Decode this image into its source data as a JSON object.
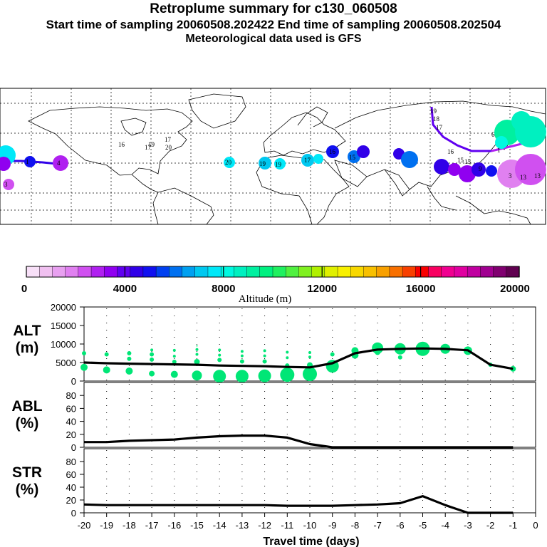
{
  "header": {
    "title": "Retroplume summary for c130_060508",
    "sampling": "Start time of sampling 20060508.202422      End time of sampling 20060508.202504",
    "met": "Meteorological data used is GFS"
  },
  "colorbar": {
    "label": "Altitude (m)",
    "ticks": [
      "0",
      "4000",
      "8000",
      "12000",
      "16000",
      "20000"
    ],
    "colors": [
      "#f8e0f8",
      "#f0c0f0",
      "#e8a0f0",
      "#e080f0",
      "#d050f0",
      "#b020f0",
      "#9000f0",
      "#6000f0",
      "#3000e8",
      "#1010f0",
      "#0040f0",
      "#0070f0",
      "#00a0f0",
      "#00c8f0",
      "#00e8f8",
      "#00f8e0",
      "#00f0c0",
      "#00f0a0",
      "#00f080",
      "#20f060",
      "#50f040",
      "#80f020",
      "#b0f000",
      "#e0f000",
      "#f8f000",
      "#f8d800",
      "#f8c000",
      "#f8a000",
      "#f87000",
      "#f84000",
      "#f80000",
      "#f80060",
      "#f00090",
      "#e000a0",
      "#c000a0",
      "#a00090",
      "#800070",
      "#600050"
    ]
  },
  "map": {
    "labels": [
      "20",
      "19",
      "19",
      "17",
      "17",
      "17",
      "16",
      "15",
      "4",
      "1",
      "3",
      "19",
      "18",
      "17",
      "16",
      "15",
      "15",
      "9",
      "6",
      "1",
      "3",
      "13",
      "13",
      "16",
      "19",
      "20"
    ],
    "label_colors": [
      "cyan",
      "cyan",
      "cyan",
      "cyan",
      "cyan",
      "blue",
      "blue",
      "blue",
      "blue",
      "blue",
      "purple",
      "teal",
      "teal",
      "teal",
      "teal",
      "teal",
      "teal",
      "teal",
      "teal",
      "teal",
      "purple",
      "purple",
      "purple",
      "purple",
      "purple",
      "purple"
    ]
  },
  "chart_data": [
    {
      "type": "line",
      "name": "ALT",
      "ylabel": "ALT\n(m)",
      "ylabel_lines": [
        "ALT",
        "(m)"
      ],
      "ylim": [
        0,
        20000
      ],
      "yticks": [
        "0",
        "5000",
        "10000",
        "15000",
        "20000"
      ],
      "x": [
        -20,
        -19,
        -18,
        -17,
        -16,
        -15,
        -14,
        -13,
        -12,
        -11,
        -10,
        -9,
        -8,
        -7,
        -6,
        -5,
        -4,
        -3,
        -2,
        -1
      ],
      "series": [
        {
          "name": "mean altitude",
          "values": [
            5000,
            4800,
            4700,
            4600,
            4500,
            4400,
            4200,
            4100,
            4000,
            3800,
            3700,
            4800,
            7500,
            8500,
            8700,
            8800,
            8700,
            8300,
            4400,
            3300
          ]
        }
      ],
      "points": [
        {
          "x": -20,
          "y": 3700,
          "s": 5
        },
        {
          "x": -20,
          "y": 7500,
          "s": 3
        },
        {
          "x": -19,
          "y": 3000,
          "s": 5
        },
        {
          "x": -19,
          "y": 7200,
          "s": 3
        },
        {
          "x": -18,
          "y": 2700,
          "s": 5
        },
        {
          "x": -18,
          "y": 6000,
          "s": 3
        },
        {
          "x": -18,
          "y": 7500,
          "s": 3
        },
        {
          "x": -17,
          "y": 2000,
          "s": 4
        },
        {
          "x": -17,
          "y": 5800,
          "s": 3
        },
        {
          "x": -17,
          "y": 7200,
          "s": 3
        },
        {
          "x": -17,
          "y": 8400,
          "s": 2
        },
        {
          "x": -16,
          "y": 1800,
          "s": 5
        },
        {
          "x": -16,
          "y": 5200,
          "s": 3
        },
        {
          "x": -16,
          "y": 6700,
          "s": 2
        },
        {
          "x": -16,
          "y": 8300,
          "s": 2
        },
        {
          "x": -15,
          "y": 1500,
          "s": 7
        },
        {
          "x": -15,
          "y": 5200,
          "s": 4
        },
        {
          "x": -15,
          "y": 7200,
          "s": 2
        },
        {
          "x": -15,
          "y": 8500,
          "s": 2
        },
        {
          "x": -15,
          "y": 9500,
          "s": 1
        },
        {
          "x": -14,
          "y": 1300,
          "s": 9
        },
        {
          "x": -14,
          "y": 5700,
          "s": 3
        },
        {
          "x": -14,
          "y": 7000,
          "s": 2
        },
        {
          "x": -14,
          "y": 8400,
          "s": 2
        },
        {
          "x": -13,
          "y": 1300,
          "s": 9
        },
        {
          "x": -13,
          "y": 5300,
          "s": 3
        },
        {
          "x": -13,
          "y": 6800,
          "s": 2
        },
        {
          "x": -13,
          "y": 8000,
          "s": 2
        },
        {
          "x": -12,
          "y": 1400,
          "s": 9
        },
        {
          "x": -12,
          "y": 5300,
          "s": 3
        },
        {
          "x": -12,
          "y": 6800,
          "s": 2
        },
        {
          "x": -12,
          "y": 8200,
          "s": 2
        },
        {
          "x": -11,
          "y": 1700,
          "s": 10
        },
        {
          "x": -11,
          "y": 4200,
          "s": 3
        },
        {
          "x": -11,
          "y": 6300,
          "s": 2
        },
        {
          "x": -11,
          "y": 7800,
          "s": 2
        },
        {
          "x": -10,
          "y": 1900,
          "s": 10
        },
        {
          "x": -10,
          "y": 4300,
          "s": 4
        },
        {
          "x": -10,
          "y": 6500,
          "s": 2
        },
        {
          "x": -10,
          "y": 7700,
          "s": 2
        },
        {
          "x": -9,
          "y": 4000,
          "s": 9
        },
        {
          "x": -9,
          "y": 7200,
          "s": 3
        },
        {
          "x": -8,
          "y": 7000,
          "s": 5
        },
        {
          "x": -8,
          "y": 8200,
          "s": 5
        },
        {
          "x": -7,
          "y": 7800,
          "s": 4
        },
        {
          "x": -7,
          "y": 8900,
          "s": 8
        },
        {
          "x": -6,
          "y": 6400,
          "s": 3
        },
        {
          "x": -6,
          "y": 8700,
          "s": 8
        },
        {
          "x": -5,
          "y": 8700,
          "s": 10
        },
        {
          "x": -4,
          "y": 8700,
          "s": 7
        },
        {
          "x": -3,
          "y": 8200,
          "s": 6
        },
        {
          "x": -2,
          "y": 4400,
          "s": 3
        },
        {
          "x": -1,
          "y": 3300,
          "s": 4
        }
      ]
    },
    {
      "type": "line",
      "name": "ABL",
      "ylabel": "ABL\n(%)",
      "ylabel_lines": [
        "ABL",
        "(%)"
      ],
      "ylim": [
        0,
        100
      ],
      "yticks": [
        "0",
        "20",
        "40",
        "60",
        "80"
      ],
      "x": [
        -20,
        -19,
        -18,
        -17,
        -16,
        -15,
        -14,
        -13,
        -12,
        -11,
        -10,
        -9,
        -8,
        -7,
        -6,
        -5,
        -4,
        -3,
        -2,
        -1
      ],
      "series": [
        {
          "name": "ABL fraction",
          "values": [
            8,
            8,
            10,
            11,
            12,
            15,
            17,
            18,
            18,
            15,
            5,
            0,
            0,
            0,
            0,
            0,
            0,
            0,
            0,
            0
          ]
        }
      ]
    },
    {
      "type": "line",
      "name": "STR",
      "ylabel": "STR\n(%)",
      "ylabel_lines": [
        "STR",
        "(%)"
      ],
      "ylim": [
        0,
        100
      ],
      "yticks": [
        "0",
        "20",
        "40",
        "60",
        "80"
      ],
      "xlabel": "Travel time (days)",
      "xticks": [
        "-20",
        "-19",
        "-18",
        "-17",
        "-16",
        "-15",
        "-14",
        "-13",
        "-12",
        "-11",
        "-10",
        "-9",
        "-8",
        "-7",
        "-6",
        "-5",
        "-4",
        "-3",
        "-2",
        "-1",
        "0"
      ],
      "x": [
        -20,
        -19,
        -18,
        -17,
        -16,
        -15,
        -14,
        -13,
        -12,
        -11,
        -10,
        -9,
        -8,
        -7,
        -6,
        -5,
        -4,
        -3,
        -2,
        -1
      ],
      "series": [
        {
          "name": "stratospheric fraction",
          "values": [
            13,
            12,
            12,
            12,
            12,
            12,
            12,
            12,
            12,
            11,
            11,
            11,
            12,
            13,
            15,
            26,
            12,
            0,
            0,
            0
          ]
        }
      ]
    }
  ]
}
